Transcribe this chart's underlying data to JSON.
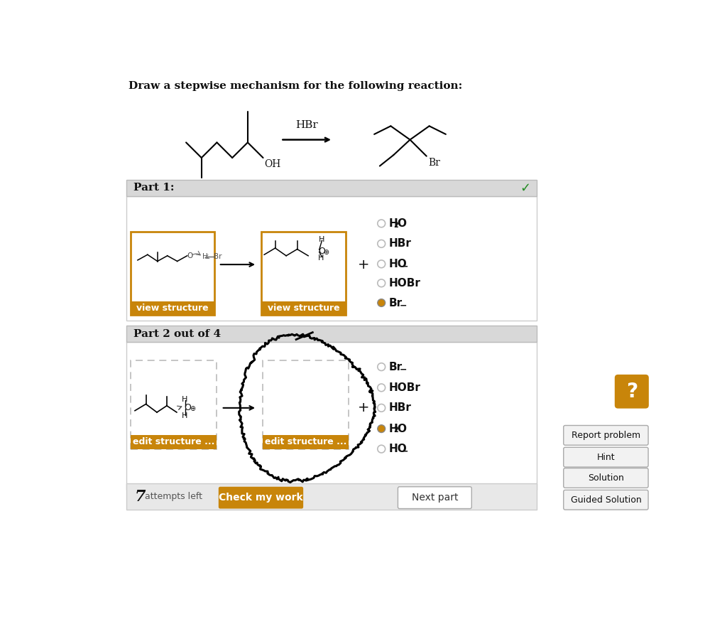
{
  "title": "Draw a stepwise mechanism for the following reaction:",
  "background_color": "#ffffff",
  "panel_bg": "#d8d8d8",
  "orange_color": "#c8850a",
  "part1_label": "Part 1:",
  "part2_label": "Part 2 out of 4",
  "radio_options_part1": [
    "H2O",
    "HBr",
    "HO-",
    "HOBr",
    "Br-"
  ],
  "radio_selected_part1": 4,
  "radio_options_part2": [
    "Br-",
    "HOBr",
    "HBr",
    "H2O",
    "HO-"
  ],
  "radio_selected_part2": 3,
  "btn_check": "Check my work",
  "btn_next": "Next part",
  "btn_report": "Report problem",
  "btn_hint": "Hint",
  "btn_solution": "Solution",
  "btn_guided": "Guided Solution",
  "view_structure": "view structure",
  "edit_structure": "edit structure ...",
  "hbr_label": "HBr",
  "plus_sign": "+"
}
